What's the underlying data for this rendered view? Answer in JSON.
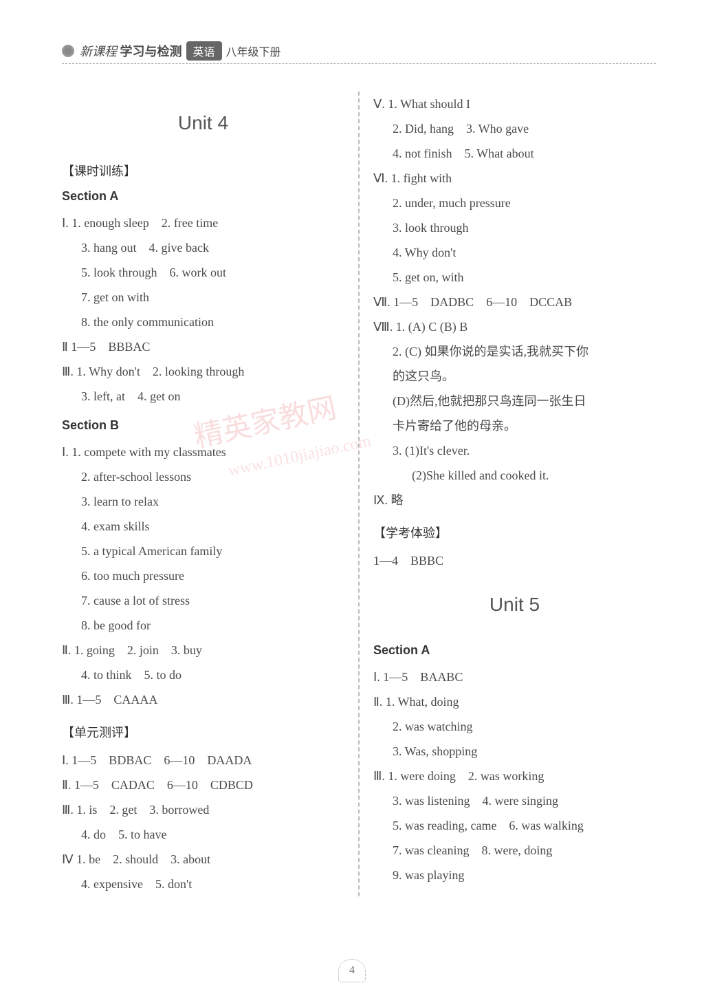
{
  "header": {
    "series": "新课程",
    "bold_part": "学习与检测",
    "badge": "英语",
    "grade": "八年级下册"
  },
  "page_number": "4",
  "watermark_main": "精英家教网",
  "watermark_url": "www.1010jiajiao.com",
  "left": {
    "unit_title": "Unit 4",
    "bracket1": "【课时训练】",
    "sectionA": "Section A",
    "a_lines": [
      "Ⅰ. 1. enough sleep　2. free time",
      "3. hang out　4. give back",
      "5. look through　6. work out",
      "7. get on with",
      "8. the only communication"
    ],
    "a_l2": "Ⅱ  1—5　BBBAC",
    "a_l3": [
      "Ⅲ. 1. Why don't　2. looking through",
      "3. left, at　4. get on"
    ],
    "sectionB": "Section B",
    "b_lines": [
      "Ⅰ. 1. compete with my classmates",
      "2. after-school lessons",
      "3. learn to relax",
      "4. exam skills",
      "5. a typical American family",
      "6. too much pressure",
      "7. cause a lot of stress",
      "8. be good for"
    ],
    "b_l2": [
      "Ⅱ. 1. going　2. join　3. buy",
      "4. to think　5. to do"
    ],
    "b_l3": "Ⅲ. 1—5　CAAAA",
    "bracket2": "【单元测评】",
    "test_lines": [
      "Ⅰ. 1—5　BDBAC　6—10　DAADA",
      "Ⅱ. 1—5　CADAC　6—10　CDBCD"
    ],
    "test_l3": [
      "Ⅲ. 1. is　2. get　3. borrowed",
      "4. do　5. to have"
    ],
    "test_l4": [
      "Ⅳ  1. be　2. should　3. about",
      "4. expensive　5. don't"
    ]
  },
  "right": {
    "v_lines": [
      "Ⅴ. 1. What should I",
      "2. Did, hang　3. Who gave",
      "4. not finish　5. What about"
    ],
    "vi_lines": [
      "Ⅵ. 1. fight with",
      "2. under, much pressure",
      "3. look through",
      "4. Why don't",
      "5. get on, with"
    ],
    "vii": "Ⅶ. 1—5　DADBC　6—10　DCCAB",
    "viii_lines": [
      "Ⅷ. 1. (A) C (B) B",
      "2. (C) 如果你说的是实话,我就买下你",
      "的这只鸟。",
      "(D)然后,他就把那只鸟连同一张生日",
      "卡片寄给了他的母亲。",
      "3. (1)It's clever.",
      "(2)She killed and cooked it."
    ],
    "ix": "Ⅸ. 略",
    "bracket3": "【学考体验】",
    "exam": "1—4　BBBC",
    "unit5_title": "Unit 5",
    "sectionA5": "Section A",
    "u5_l1": "Ⅰ. 1—5　BAABC",
    "u5_l2": [
      "Ⅱ. 1. What, doing",
      "2. was watching",
      "3. Was, shopping"
    ],
    "u5_l3": [
      "Ⅲ. 1. were doing　2. was working",
      "3. was listening　4. were singing",
      "5. was reading, came　6. was walking",
      "7. was cleaning　8. were, doing",
      "9. was playing"
    ]
  }
}
